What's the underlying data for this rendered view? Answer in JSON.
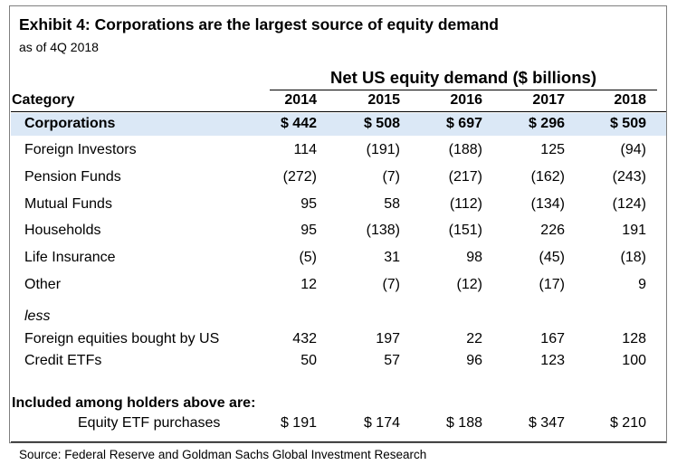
{
  "exhibit": {
    "title": "Exhibit 4: Corporations are the largest source of equity demand",
    "subtitle": "as of 4Q 2018",
    "source": "Source: Federal Reserve and Goldman Sachs Global Investment Research"
  },
  "chart_data": {
    "type": "table",
    "title": "Net US equity demand ($ billions)",
    "category_header": "Category",
    "years": [
      "2014",
      "2015",
      "2016",
      "2017",
      "2018"
    ],
    "rows": [
      {
        "label": "Corporations",
        "values": [
          "$ 442",
          "$ 508",
          "$ 697",
          "$ 296",
          "$ 509"
        ]
      },
      {
        "label": "Foreign Investors",
        "values": [
          "114",
          "(191)",
          "(188)",
          "125",
          "(94)"
        ]
      },
      {
        "label": "Pension Funds",
        "values": [
          "(272)",
          "(7)",
          "(217)",
          "(162)",
          "(243)"
        ]
      },
      {
        "label": "Mutual Funds",
        "values": [
          "95",
          "58",
          "(112)",
          "(134)",
          "(124)"
        ]
      },
      {
        "label": "Households",
        "values": [
          "95",
          "(138)",
          "(151)",
          "226",
          "191"
        ]
      },
      {
        "label": "Life Insurance",
        "values": [
          "(5)",
          "31",
          "98",
          "(45)",
          "(18)"
        ]
      },
      {
        "label": "Other",
        "values": [
          "12",
          "(7)",
          "(12)",
          "(17)",
          "9"
        ]
      }
    ],
    "less_label": "less",
    "less_rows": [
      {
        "label": "Foreign equities bought by US",
        "values": [
          "432",
          "197",
          "22",
          "167",
          "128"
        ]
      },
      {
        "label": "Credit ETFs",
        "values": [
          "50",
          "57",
          "96",
          "123",
          "100"
        ]
      }
    ],
    "included_header": "Included among holders above are:",
    "included_rows": [
      {
        "label": "Equity ETF purchases",
        "values": [
          "$ 191",
          "$ 174",
          "$ 188",
          "$ 347",
          "$ 210"
        ]
      }
    ],
    "highlight_color": "#dbe8f6"
  }
}
